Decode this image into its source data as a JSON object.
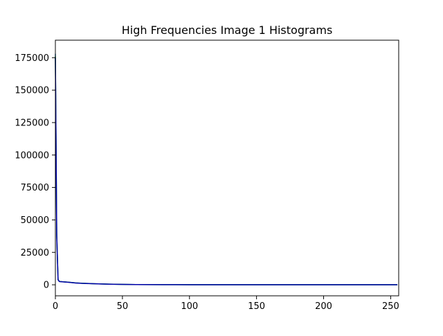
{
  "chart_data": {
    "type": "line",
    "title": "High Frequencies Image 1 Histograms",
    "xlabel": "",
    "ylabel": "",
    "xlim": [
      0,
      256
    ],
    "ylim": [
      -8500,
      188500
    ],
    "xticks": [
      0,
      50,
      100,
      150,
      200,
      250
    ],
    "yticks": [
      0,
      25000,
      50000,
      75000,
      100000,
      125000,
      150000,
      175000
    ],
    "grid": false,
    "legend": "none",
    "series": [
      {
        "color": "#1f77b4",
        "x": [
          0,
          1,
          2,
          3,
          5,
          10,
          15,
          20,
          30,
          40,
          50,
          60,
          80,
          100,
          150,
          200,
          255
        ],
        "y": [
          178000,
          40000,
          4000,
          2600,
          2400,
          2000,
          1500,
          1200,
          800,
          500,
          300,
          200,
          120,
          80,
          40,
          20,
          10
        ]
      },
      {
        "color": "#2ca02c",
        "x": [
          0,
          1,
          2,
          3,
          5,
          10,
          15,
          20,
          30,
          40,
          50,
          60,
          80,
          100,
          150,
          200,
          255
        ],
        "y": [
          176000,
          39000,
          3900,
          2550,
          2350,
          1950,
          1450,
          1150,
          780,
          480,
          290,
          190,
          115,
          75,
          38,
          18,
          9
        ]
      },
      {
        "color": "#0000aa",
        "x": [
          0,
          1,
          2,
          3,
          5,
          10,
          15,
          20,
          30,
          40,
          50,
          60,
          80,
          100,
          150,
          200,
          255
        ],
        "y": [
          175000,
          38000,
          3800,
          2500,
          2300,
          1900,
          1400,
          1100,
          750,
          460,
          280,
          180,
          110,
          70,
          35,
          15,
          8
        ]
      }
    ]
  }
}
